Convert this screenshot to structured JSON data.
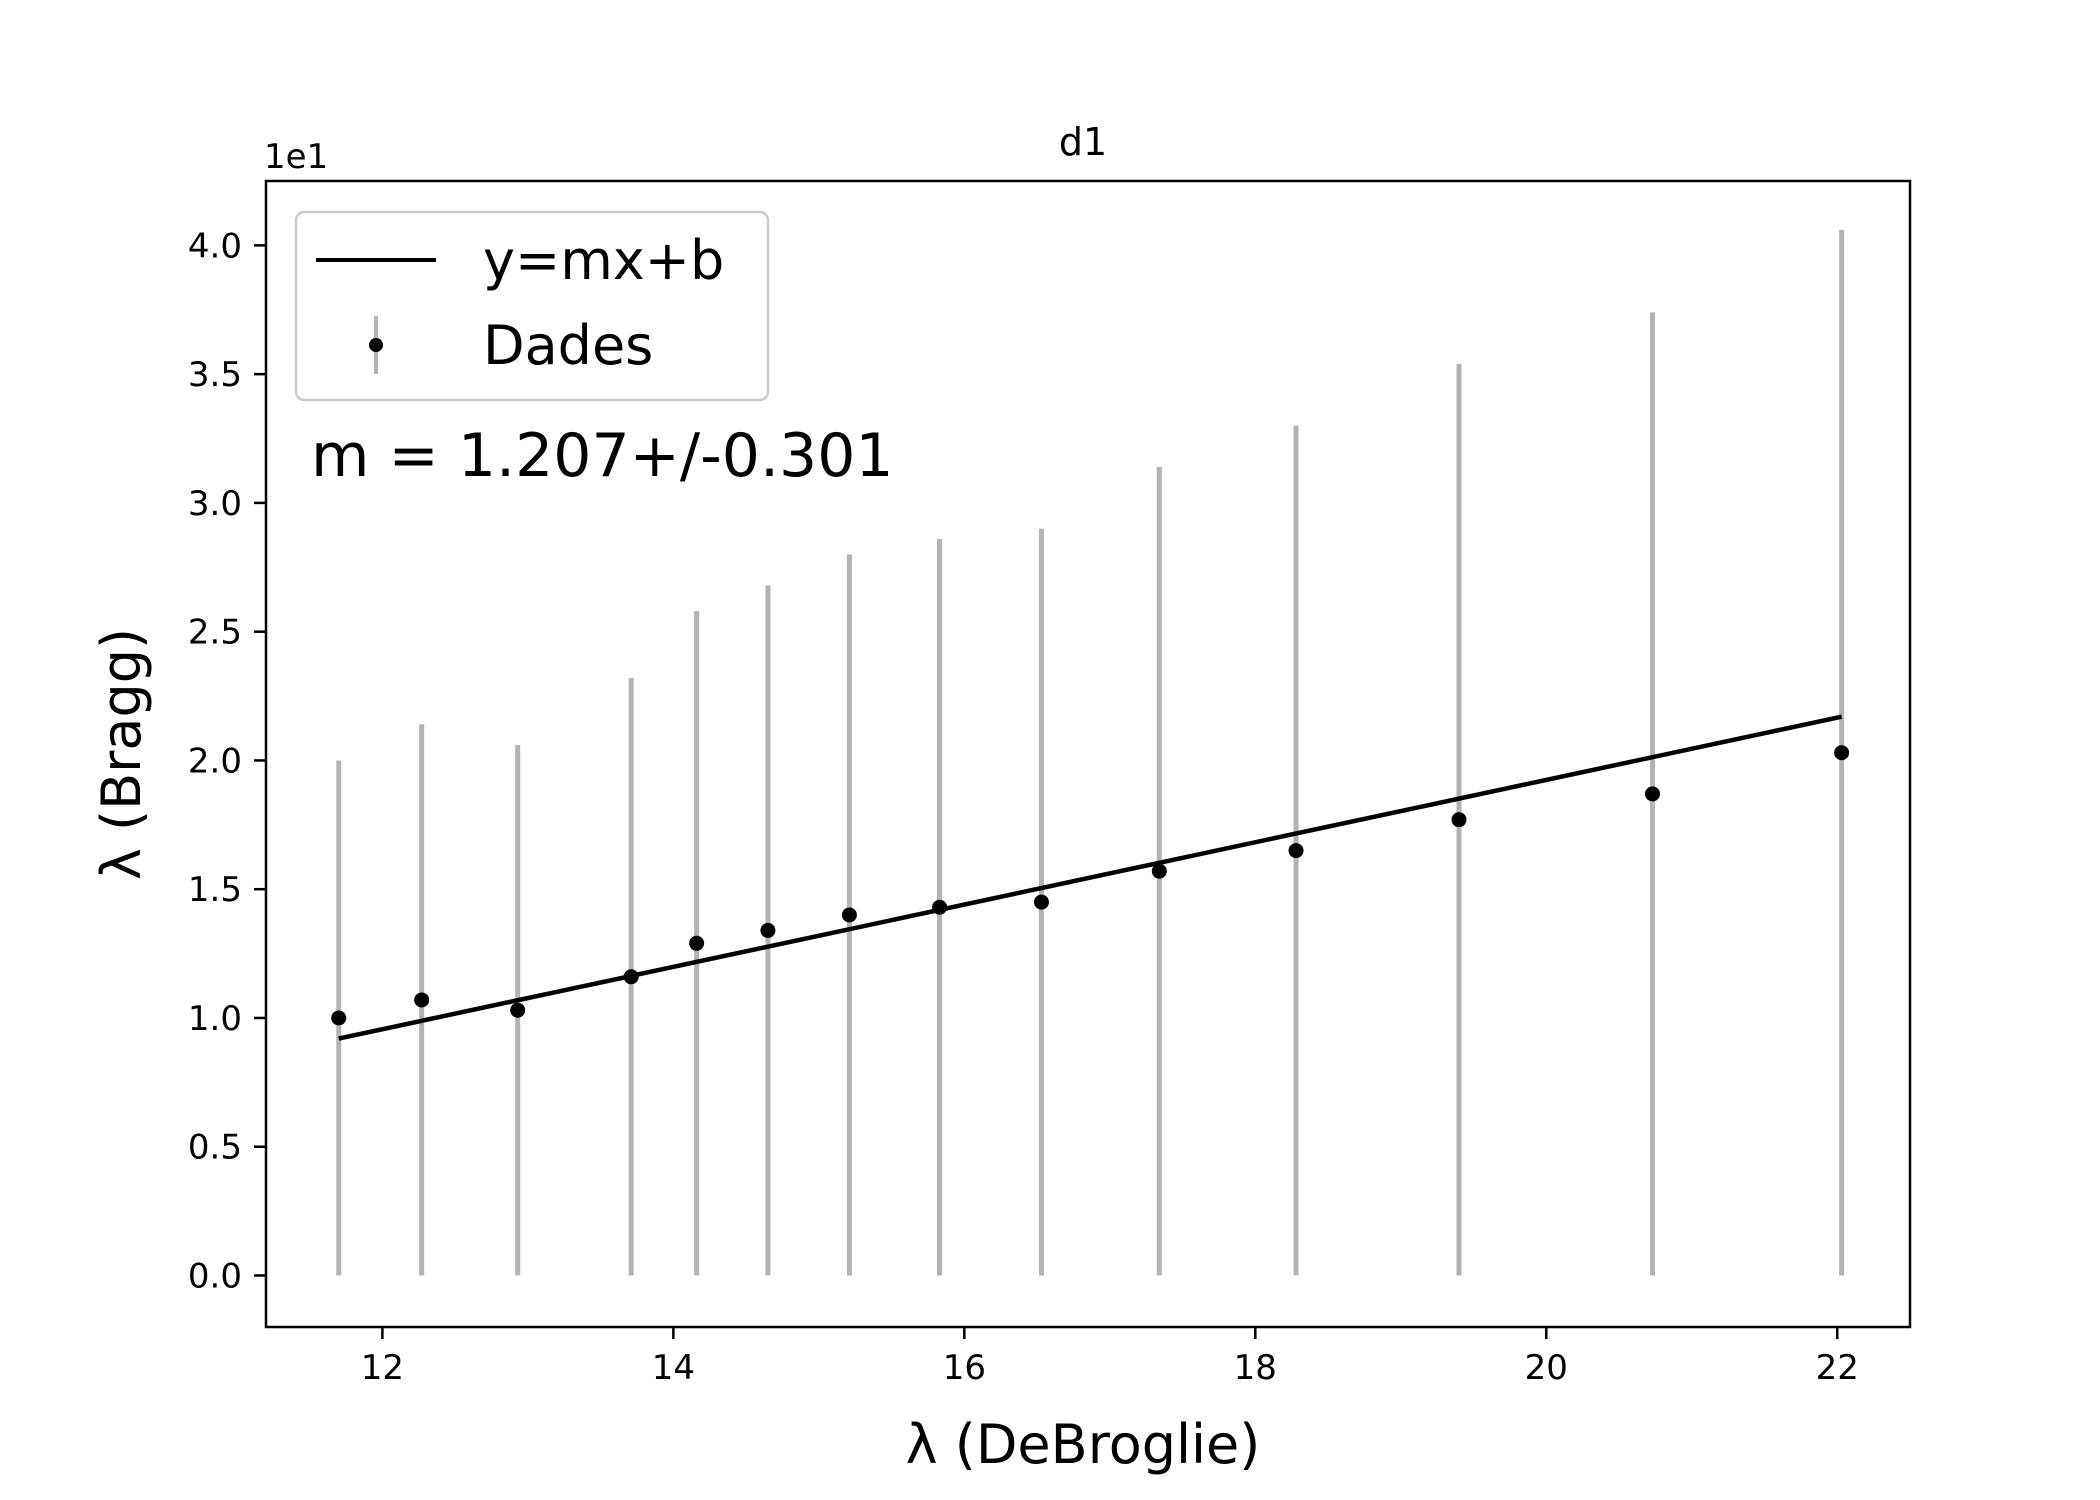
{
  "chart_data": {
    "type": "scatter",
    "title": "d1",
    "xlabel": "λ (DeBroglie)",
    "ylabel": "λ (Bragg)",
    "y_offset_label": "1e1",
    "xlim": [
      11.2,
      22.5
    ],
    "ylim": [
      -0.2,
      4.25
    ],
    "x_ticks": [
      12,
      14,
      16,
      18,
      20,
      22
    ],
    "x_tick_labels": [
      "12",
      "14",
      "16",
      "18",
      "20",
      "22"
    ],
    "y_ticks": [
      0.0,
      0.5,
      1.0,
      1.5,
      2.0,
      2.5,
      3.0,
      3.5,
      4.0
    ],
    "y_tick_labels": [
      "0.0",
      "0.5",
      "1.0",
      "1.5",
      "2.0",
      "2.5",
      "3.0",
      "3.5",
      "4.0"
    ],
    "grid": false,
    "legend_position": "upper-left",
    "annotation": "m = 1.207+/-0.301",
    "series": [
      {
        "name": "Dades",
        "kind": "errorbar-points",
        "color": "#000000",
        "error_color": "#b3b3b3",
        "points": [
          {
            "x": 11.7,
            "y": 1.0,
            "err": 1.0
          },
          {
            "x": 12.27,
            "y": 1.07,
            "err": 1.07
          },
          {
            "x": 12.93,
            "y": 1.03,
            "err": 1.03
          },
          {
            "x": 13.71,
            "y": 1.16,
            "err": 1.16
          },
          {
            "x": 14.16,
            "y": 1.29,
            "err": 1.29
          },
          {
            "x": 14.65,
            "y": 1.34,
            "err": 1.34
          },
          {
            "x": 15.21,
            "y": 1.4,
            "err": 1.4
          },
          {
            "x": 15.83,
            "y": 1.43,
            "err": 1.43
          },
          {
            "x": 16.53,
            "y": 1.45,
            "err": 1.45
          },
          {
            "x": 17.34,
            "y": 1.57,
            "err": 1.57
          },
          {
            "x": 18.28,
            "y": 1.65,
            "err": 1.65
          },
          {
            "x": 19.4,
            "y": 1.77,
            "err": 1.77
          },
          {
            "x": 20.73,
            "y": 1.87,
            "err": 1.87
          },
          {
            "x": 22.03,
            "y": 2.03,
            "err": 2.03
          }
        ]
      },
      {
        "name": "y=mx+b",
        "kind": "line",
        "color": "#000000",
        "x": [
          11.7,
          22.03
        ],
        "y": [
          0.92,
          2.17
        ]
      }
    ]
  }
}
